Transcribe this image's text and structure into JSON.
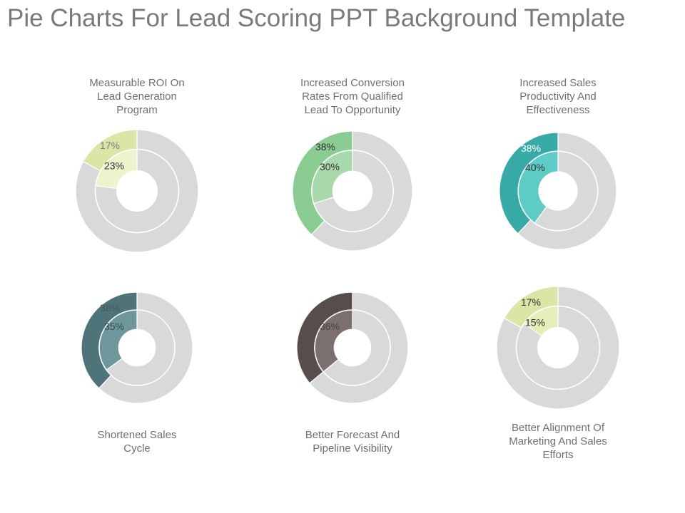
{
  "title": "Pie Charts For Lead Scoring PPT Background Template",
  "chart_data": [
    {
      "type": "pie",
      "caption_lines": [
        "Measurable ROI On",
        "Lead Generation",
        "Program"
      ],
      "outer_value": 17,
      "inner_value": 23,
      "outer_label": "17%",
      "inner_label": "23%",
      "outer_color": "#dae6a6",
      "inner_color": "#eef2cd",
      "outer_label_color": "#7a7a7a",
      "inner_label_color": "#333333",
      "remainder_color": "#d9d9d9"
    },
    {
      "type": "pie",
      "caption_lines": [
        "Increased Conversion",
        "Rates From Qualified",
        "Lead To Opportunity"
      ],
      "outer_value": 38,
      "inner_value": 30,
      "outer_label": "38%",
      "inner_label": "30%",
      "outer_color": "#8acc92",
      "inner_color": "#a8d9ad",
      "outer_label_color": "#333333",
      "inner_label_color": "#333333",
      "remainder_color": "#d9d9d9"
    },
    {
      "type": "pie",
      "caption_lines": [
        "Increased Sales",
        "Productivity And",
        "Effectiveness"
      ],
      "outer_value": 38,
      "inner_value": 40,
      "outer_label": "38%",
      "inner_label": "40%",
      "outer_color": "#38aaa5",
      "inner_color": "#5fcbc6",
      "outer_label_color": "#ffffff",
      "inner_label_color": "#333333",
      "remainder_color": "#d9d9d9"
    },
    {
      "type": "pie",
      "caption_lines": [
        "Shortened Sales",
        "Cycle"
      ],
      "outer_value": 38,
      "inner_value": 35,
      "outer_label": "38%",
      "inner_label": "35%",
      "outer_color": "#4e7479",
      "inner_color": "#6e979c",
      "outer_label_color": "#4a5a5c",
      "inner_label_color": "#3a4a4c",
      "remainder_color": "#d9d9d9"
    },
    {
      "type": "pie",
      "caption_lines": [
        "Better Forecast And",
        "Pipeline Visibility"
      ],
      "outer_value": 36,
      "inner_value": 36,
      "outer_label": "",
      "inner_label": "36%",
      "outer_color": "#574e4c",
      "inner_color": "#7c706e",
      "outer_label_color": "#4a4240",
      "inner_label_color": "#4a4240",
      "remainder_color": "#d9d9d9"
    },
    {
      "type": "pie",
      "caption_lines": [
        "Better Alignment Of",
        "Marketing And Sales",
        "Efforts"
      ],
      "outer_value": 17,
      "inner_value": 15,
      "outer_label": "17%",
      "inner_label": "15%",
      "outer_color": "#dae6a6",
      "inner_color": "#e6edb8",
      "outer_label_color": "#333333",
      "inner_label_color": "#333333",
      "remainder_color": "#d9d9d9"
    }
  ]
}
